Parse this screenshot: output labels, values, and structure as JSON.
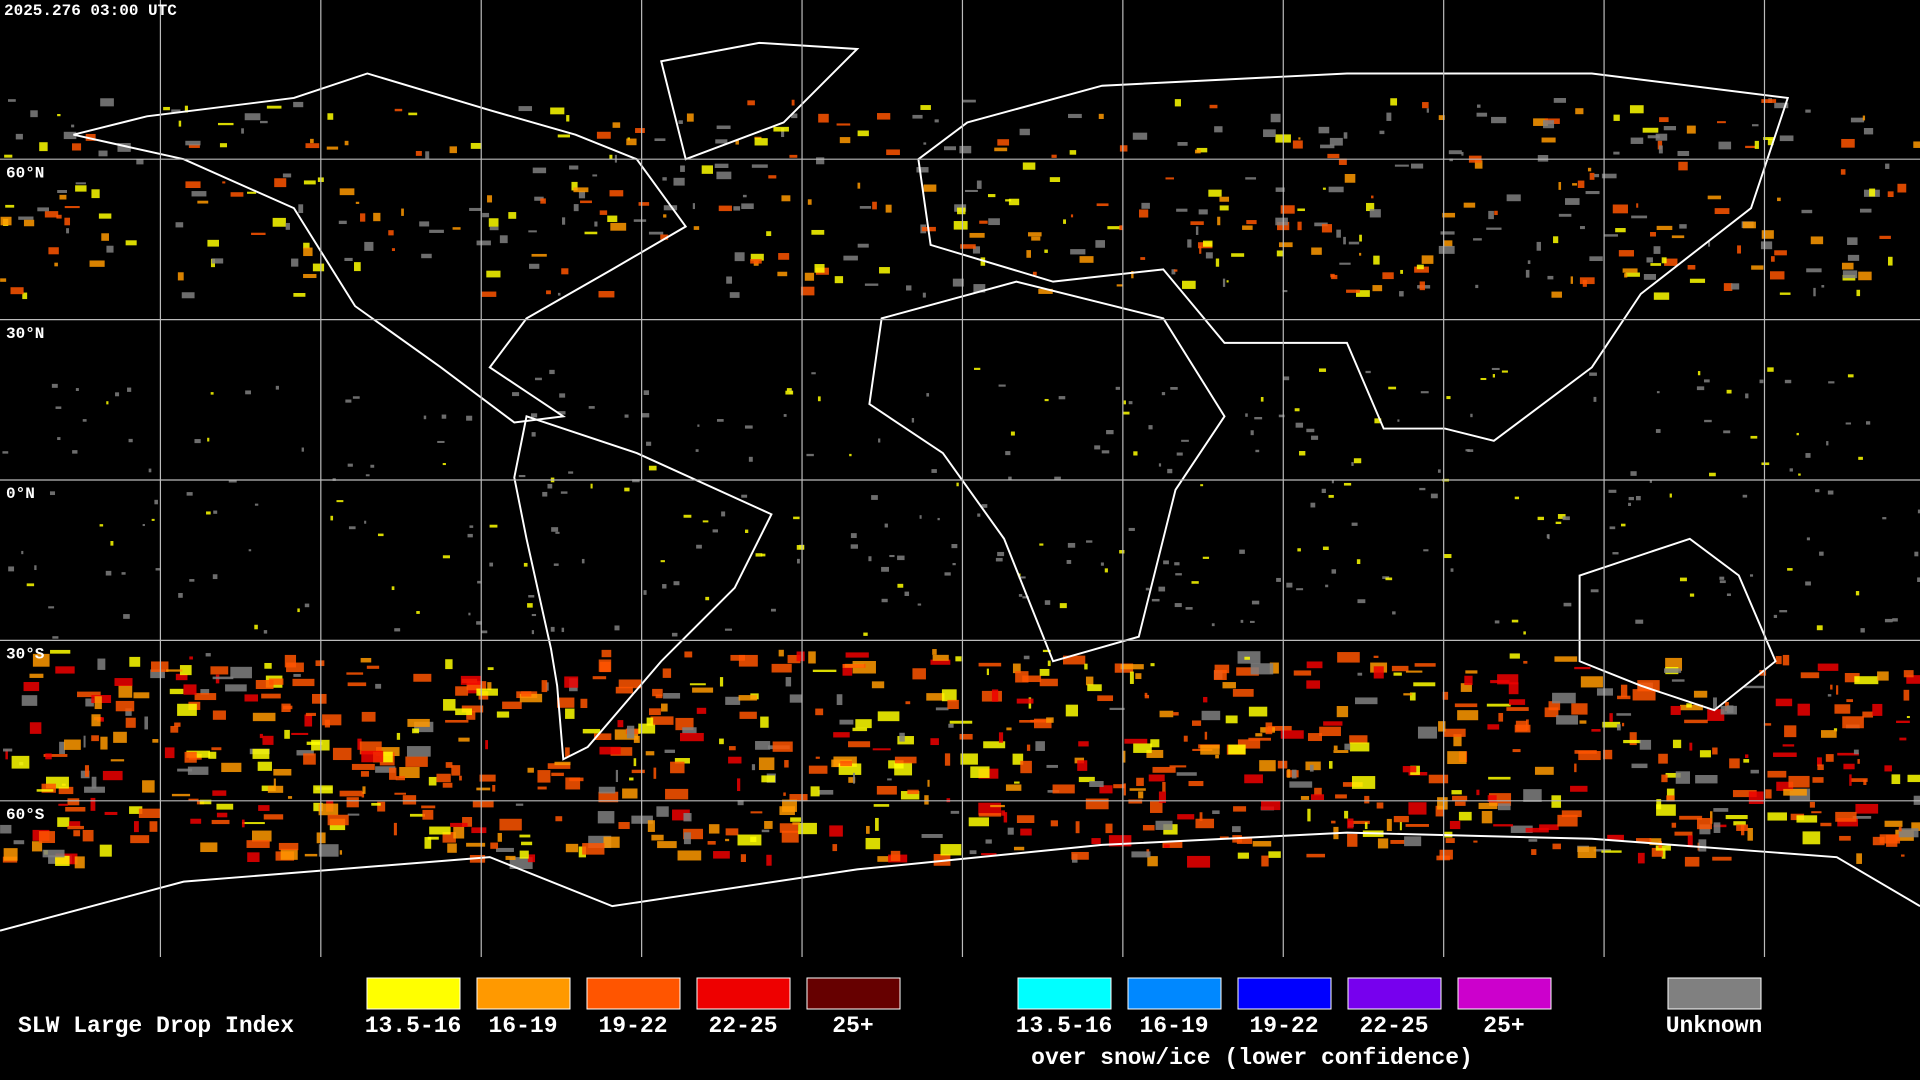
{
  "timestamp": "2025.276 03:00 UTC",
  "latitude_labels": [
    "60°N",
    "30°N",
    "0°N",
    "30°S",
    "60°S"
  ],
  "legend": {
    "title": "SLW Large Drop Index",
    "items": [
      {
        "label": "13.5-16",
        "color": "#ffff00"
      },
      {
        "label": "16-19",
        "color": "#ff9900"
      },
      {
        "label": "19-22",
        "color": "#ff5500"
      },
      {
        "label": "22-25",
        "color": "#ee0000"
      },
      {
        "label": "25+",
        "color": "#660000"
      }
    ],
    "snow_items": [
      {
        "label": "13.5-16",
        "color": "#00ffff"
      },
      {
        "label": "16-19",
        "color": "#0088ff"
      },
      {
        "label": "19-22",
        "color": "#0000ff"
      },
      {
        "label": "22-25",
        "color": "#7700ee"
      },
      {
        "label": "25+",
        "color": "#cc00cc"
      }
    ],
    "snow_caption": "over snow/ice (lower confidence)",
    "unknown": {
      "label": "Unknown",
      "color": "#808080"
    }
  }
}
